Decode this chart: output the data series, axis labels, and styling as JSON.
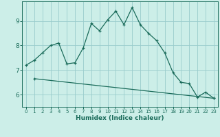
{
  "xlabel": "Humidex (Indice chaleur)",
  "background_color": "#cceee8",
  "grid_color": "#99cccc",
  "line_color": "#1a6b5a",
  "xlim": [
    -0.5,
    23.5
  ],
  "ylim": [
    5.5,
    9.8
  ],
  "xticks": [
    0,
    1,
    2,
    3,
    4,
    5,
    6,
    7,
    8,
    9,
    10,
    11,
    12,
    13,
    14,
    15,
    16,
    17,
    18,
    19,
    20,
    21,
    22,
    23
  ],
  "yticks": [
    6,
    7,
    8,
    9
  ],
  "line1_x": [
    0,
    1,
    2,
    3,
    4,
    5,
    6,
    7,
    8,
    9,
    10,
    11,
    12,
    13,
    14,
    15,
    16,
    17,
    18,
    19,
    20,
    21,
    22,
    23
  ],
  "line1_y": [
    7.2,
    7.4,
    7.7,
    8.0,
    8.1,
    7.25,
    7.3,
    7.9,
    8.9,
    8.6,
    9.05,
    9.4,
    8.85,
    9.55,
    8.85,
    8.5,
    8.2,
    7.7,
    6.9,
    6.5,
    6.45,
    5.9,
    6.1,
    5.85
  ],
  "line2_x": [
    1,
    23
  ],
  "line2_y": [
    6.65,
    5.85
  ],
  "marker_size": 3.5,
  "linewidth": 0.9
}
